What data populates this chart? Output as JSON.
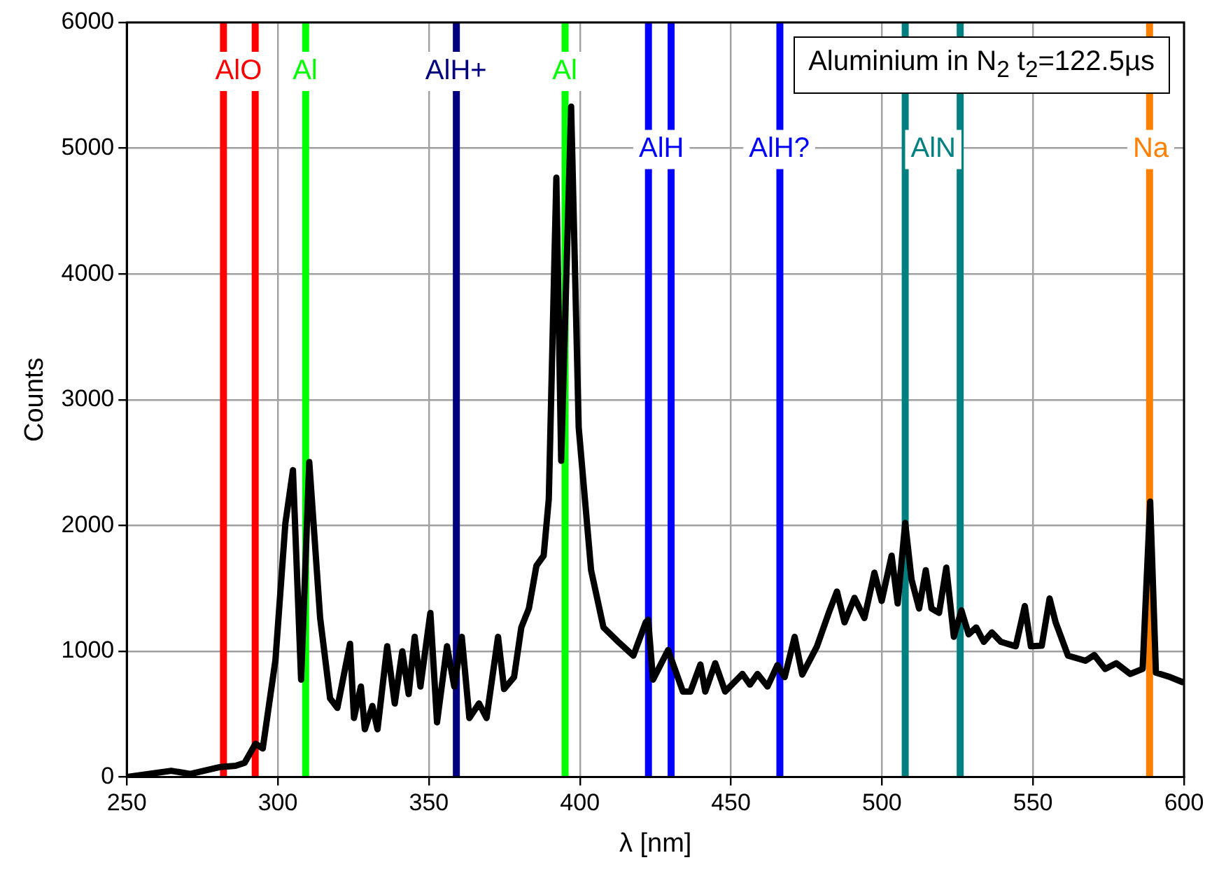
{
  "chart_data": {
    "type": "line",
    "xlabel": "λ [nm]",
    "ylabel": "Counts",
    "annotations": [
      "Aluminium in N$_{2}$ t$_{2}$=122.5µs",
      {
        "text": "AlO",
        "x": 287,
        "y": 5610
      },
      {
        "text": "Al",
        "x": 309,
        "y": 5610
      },
      {
        "text": "AlH+",
        "x": 359,
        "y": 5610
      },
      {
        "text": "Al",
        "x": 395,
        "y": 5610
      },
      {
        "text": "AlH",
        "x": 427,
        "y": 4990
      },
      {
        "text": "AlH?",
        "x": 466,
        "y": 4990
      },
      {
        "text": "AlN",
        "x": 517,
        "y": 4990
      },
      {
        "text": "Na",
        "x": 589,
        "y": 4990
      }
    ],
    "series": [
      {
        "color": "#000000",
        "x": [
          250,
          264.7,
          271,
          281,
          286,
          289,
          292.6,
          295,
          299.2,
          302.5,
          305,
          307.7,
          310.4,
          314,
          317.3,
          319.7,
          323.9,
          325.2,
          327.5,
          328.8,
          331.3,
          333,
          336.2,
          338.7,
          341.2,
          343.3,
          345.3,
          347.2,
          350.5,
          352.7,
          356,
          358.4,
          360.9,
          363.4,
          366.6,
          369.1,
          372.9,
          374.9,
          378.2,
          380.6,
          383.1,
          385.6,
          388,
          389.7,
          392.2,
          393.8,
          397.1,
          399.6,
          403.7,
          407.8,
          412.7,
          417.7,
          421.8,
          422.6,
          424.2,
          429.2,
          434.1,
          436.6,
          439.9,
          441.5,
          444.8,
          448.1,
          453.8,
          456.3,
          458.8,
          462.1,
          465.4,
          467.8,
          471.1,
          473.6,
          478.5,
          482.6,
          485.1,
          487.6,
          490.9,
          494.2,
          497.5,
          499.9,
          503.2,
          505.2,
          507.7,
          509.8,
          512.3,
          514.5,
          516.4,
          518.9,
          521.3,
          523.8,
          526.3,
          528.7,
          531.2,
          533.7,
          536.4,
          539.4,
          544.3,
          547.3,
          549.3,
          552.9,
          555.5,
          557.5,
          561.6,
          567.4,
          570.3,
          573.9,
          577.6,
          582.2,
          586.3,
          588.8,
          590.7,
          595.4,
          599.5,
          600
        ],
        "values": [
          0,
          50,
          25,
          80,
          90,
          113,
          265,
          227,
          930,
          2020,
          2440,
          775,
          2505,
          1265,
          625,
          550,
          1060,
          470,
          720,
          380,
          565,
          380,
          1040,
          585,
          1000,
          660,
          1115,
          720,
          1305,
          435,
          1040,
          720,
          1115,
          470,
          585,
          470,
          1115,
          700,
          795,
          1190,
          1340,
          1680,
          1760,
          2210,
          4765,
          2515,
          5330,
          2780,
          1645,
          1190,
          1075,
          965,
          1230,
          1250,
          775,
          1010,
          680,
          680,
          895,
          680,
          905,
          680,
          820,
          735,
          820,
          720,
          890,
          795,
          1115,
          815,
          1040,
          1320,
          1475,
          1230,
          1425,
          1265,
          1625,
          1400,
          1760,
          1380,
          2020,
          1570,
          1340,
          1645,
          1340,
          1305,
          1665,
          1115,
          1325,
          1135,
          1190,
          1075,
          1150,
          1075,
          1040,
          1360,
          1040,
          1045,
          1420,
          1230,
          965,
          925,
          970,
          860,
          905,
          820,
          860,
          2190,
          830,
          795,
          755,
          760
        ]
      }
    ],
    "ref_lines": [
      {
        "axis": "x",
        "value": 282,
        "color": "#ff0000"
      },
      {
        "axis": "x",
        "value": 292.5,
        "color": "#ff0000"
      },
      {
        "axis": "x",
        "value": 309.2,
        "color": "#00ff00"
      },
      {
        "axis": "x",
        "value": 359.1,
        "color": "#000080"
      },
      {
        "axis": "x",
        "value": 395.1,
        "color": "#00ff00"
      },
      {
        "axis": "x",
        "value": 422.7,
        "color": "#0000ff"
      },
      {
        "axis": "x",
        "value": 430.2,
        "color": "#0000ff"
      },
      {
        "axis": "x",
        "value": 466.2,
        "color": "#0000ff"
      },
      {
        "axis": "x",
        "value": 507.7,
        "color": "#008080"
      },
      {
        "axis": "x",
        "value": 525.9,
        "color": "#008080"
      },
      {
        "axis": "x",
        "value": 588.6,
        "color": "#ff8000"
      }
    ],
    "xlim": [
      250,
      600
    ],
    "xticks": [
      250,
      300,
      350,
      400,
      450,
      500,
      550,
      600
    ],
    "ylim": [
      0,
      6000
    ],
    "yticks": [
      0,
      1000,
      2000,
      3000,
      4000,
      5000,
      6000
    ],
    "grid": true,
    "legend": false,
    "marker": "none",
    "line_style": "solid"
  }
}
